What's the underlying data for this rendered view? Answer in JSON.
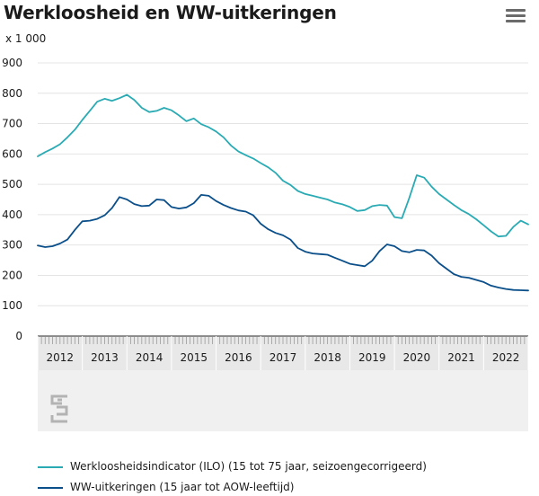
{
  "title": "Werkloosheid en WW-uitkeringen",
  "menu_icon": "hamburger-menu-icon",
  "colors": {
    "series1": "#2aabb4",
    "series2": "#0b4f8a",
    "grid": "#e4e4e4",
    "axis": "#2a2a2a",
    "band": "#e8e8e8"
  },
  "chart_data": {
    "type": "line",
    "title": "Werkloosheid en WW-uitkeringen",
    "ylabel": "x 1 000",
    "xlabel": "",
    "ylim": [
      0,
      900
    ],
    "yticks": [
      0,
      100,
      200,
      300,
      400,
      500,
      600,
      700,
      800,
      900
    ],
    "year_labels": [
      "2012",
      "2013",
      "2014",
      "2015",
      "2016",
      "2017",
      "2018",
      "2019",
      "2020",
      "2021",
      "2022"
    ],
    "x_start": 2012.0,
    "x_step_months": 2,
    "grid": true,
    "legend_position": "bottom",
    "series": [
      {
        "name": "Werkloosheidsindicator (ILO) (15 tot 75 jaar, seizoengecorrigeerd)",
        "values": [
          592,
          606,
          618,
          632,
          655,
          680,
          712,
          742,
          772,
          782,
          775,
          784,
          795,
          778,
          752,
          738,
          742,
          752,
          744,
          727,
          708,
          717,
          698,
          688,
          674,
          655,
          628,
          608,
          596,
          585,
          570,
          556,
          538,
          512,
          498,
          478,
          468,
          462,
          456,
          450,
          440,
          434,
          425,
          412,
          415,
          428,
          432,
          430,
          392,
          388,
          455,
          530,
          522,
          492,
          468,
          450,
          432,
          415,
          402,
          385,
          365,
          345,
          328,
          330,
          360,
          380,
          368
        ]
      },
      {
        "name": "WW-uitkeringen (15 jaar tot AOW-leeftijd)",
        "values": [
          298,
          293,
          296,
          305,
          318,
          350,
          378,
          380,
          386,
          398,
          422,
          458,
          450,
          435,
          428,
          430,
          450,
          448,
          425,
          420,
          424,
          438,
          465,
          462,
          445,
          432,
          422,
          414,
          410,
          398,
          370,
          352,
          340,
          332,
          318,
          290,
          278,
          272,
          270,
          268,
          258,
          248,
          238,
          234,
          230,
          248,
          280,
          302,
          296,
          280,
          276,
          284,
          282,
          265,
          240,
          222,
          204,
          195,
          192,
          185,
          178,
          166,
          160,
          155,
          152,
          151,
          150
        ]
      }
    ]
  },
  "legend": [
    {
      "label": "Werkloosheidsindicator (ILO) (15 tot 75 jaar, seizoengecorrigeerd)"
    },
    {
      "label": "WW-uitkeringen (15 jaar tot AOW-leeftijd)"
    }
  ],
  "logo_icon": "cbs-logo-icon"
}
